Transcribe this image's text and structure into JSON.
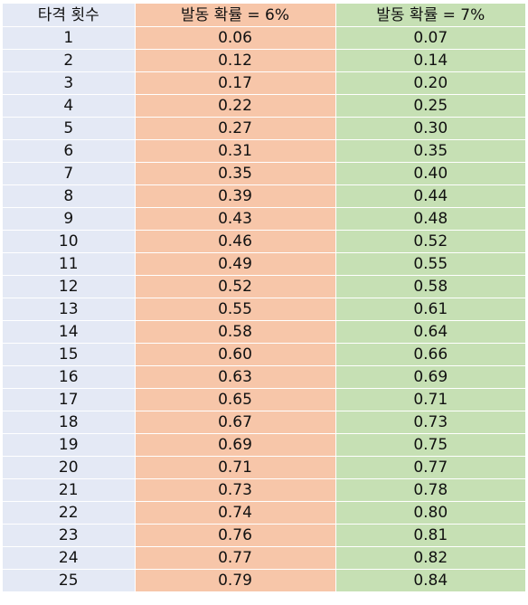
{
  "table": {
    "headers": [
      "타격 횟수",
      "발동 확률 = 6%",
      "발동 확률 = 7%"
    ],
    "rows": [
      [
        "1",
        "0.06",
        "0.07"
      ],
      [
        "2",
        "0.12",
        "0.14"
      ],
      [
        "3",
        "0.17",
        "0.20"
      ],
      [
        "4",
        "0.22",
        "0.25"
      ],
      [
        "5",
        "0.27",
        "0.30"
      ],
      [
        "6",
        "0.31",
        "0.35"
      ],
      [
        "7",
        "0.35",
        "0.40"
      ],
      [
        "8",
        "0.39",
        "0.44"
      ],
      [
        "9",
        "0.43",
        "0.48"
      ],
      [
        "10",
        "0.46",
        "0.52"
      ],
      [
        "11",
        "0.49",
        "0.55"
      ],
      [
        "12",
        "0.52",
        "0.58"
      ],
      [
        "13",
        "0.55",
        "0.61"
      ],
      [
        "14",
        "0.58",
        "0.64"
      ],
      [
        "15",
        "0.60",
        "0.66"
      ],
      [
        "16",
        "0.63",
        "0.69"
      ],
      [
        "17",
        "0.65",
        "0.71"
      ],
      [
        "18",
        "0.67",
        "0.73"
      ],
      [
        "19",
        "0.69",
        "0.75"
      ],
      [
        "20",
        "0.71",
        "0.77"
      ],
      [
        "21",
        "0.73",
        "0.78"
      ],
      [
        "22",
        "0.74",
        "0.80"
      ],
      [
        "23",
        "0.76",
        "0.81"
      ],
      [
        "24",
        "0.77",
        "0.82"
      ],
      [
        "25",
        "0.79",
        "0.84"
      ]
    ]
  },
  "colors": {
    "column1_bg": "#e4e9f5",
    "column2_bg": "#f7c6a9",
    "column3_bg": "#c6e0b4"
  }
}
